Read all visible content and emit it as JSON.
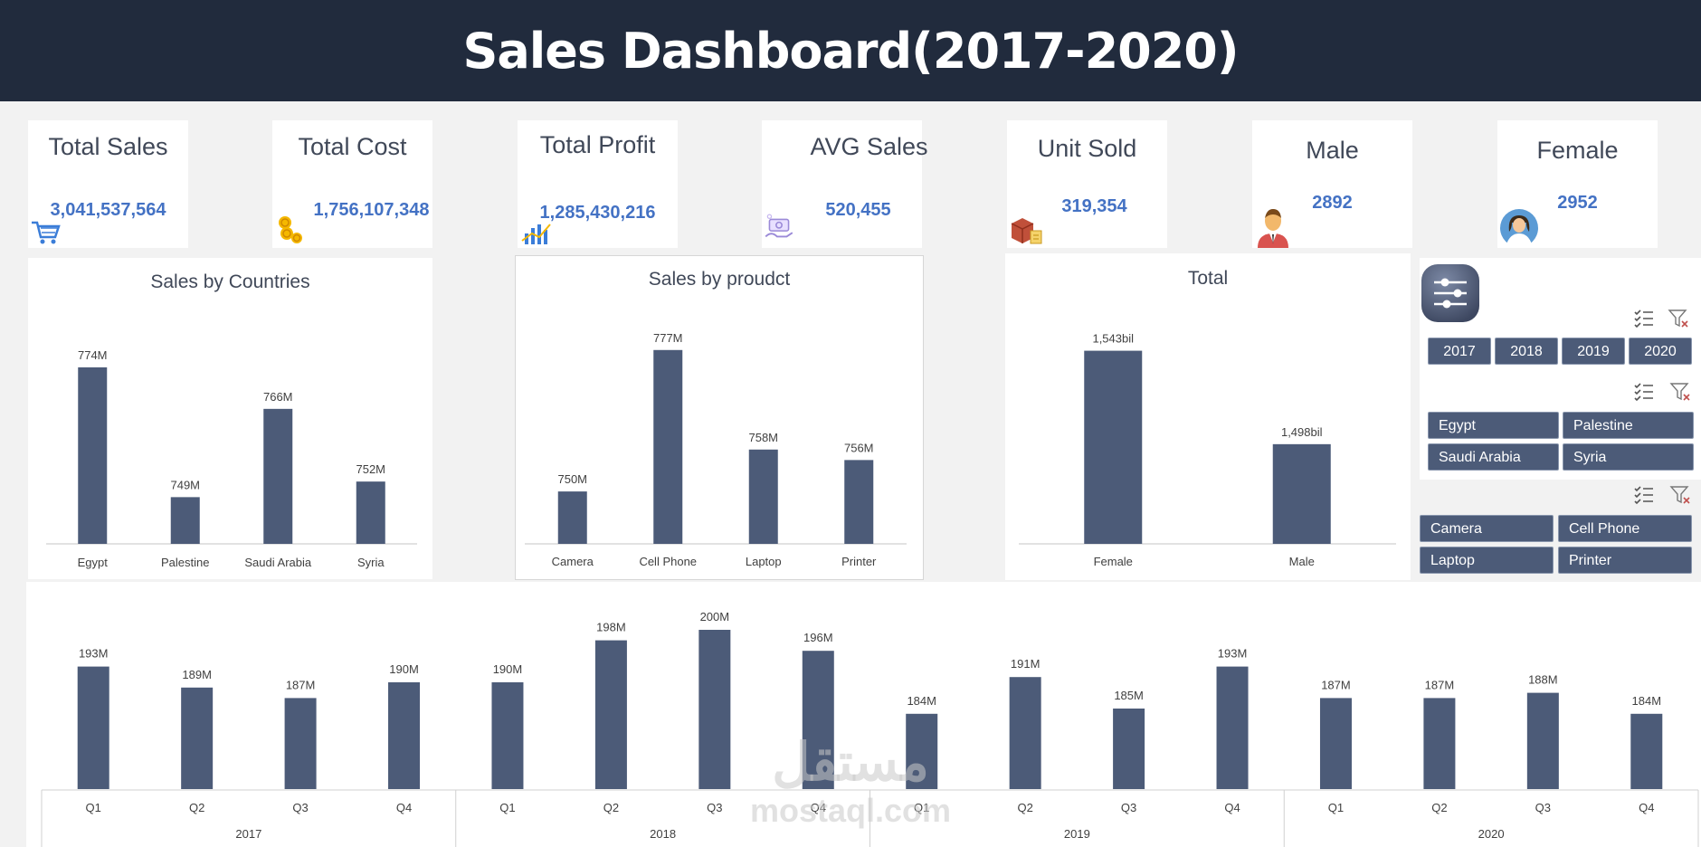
{
  "title": "Sales Dashboard(2017-2020)",
  "kpis": [
    {
      "label": "Total Sales",
      "value": "3,041,537,564",
      "icon": "shopping-cart-icon"
    },
    {
      "label": "Total Cost",
      "value": "1,756,107,348",
      "icon": "coins-icon"
    },
    {
      "label": "Total Profit",
      "value": "1,285,430,216",
      "icon": "growth-chart-icon"
    },
    {
      "label": "AVG Sales",
      "value": "520,455",
      "icon": "money-hand-icon"
    },
    {
      "label": "Unit Sold",
      "value": "319,354",
      "icon": "boxes-icon"
    },
    {
      "label": "Male",
      "value": "2892",
      "icon": "male-avatar-icon"
    },
    {
      "label": "Female",
      "value": "2952",
      "icon": "female-avatar-icon"
    }
  ],
  "colors": {
    "bar": "#4c5b78",
    "banner": "#212b3d",
    "kpi_value": "#4472c4"
  },
  "chart_data": [
    {
      "type": "bar",
      "title": "Sales by Countries",
      "categories": [
        "Egypt",
        "Palestine",
        "Saudi Arabia",
        "Syria"
      ],
      "values": [
        774,
        749,
        766,
        752
      ],
      "labels": [
        "774M",
        "749M",
        "766M",
        "752M"
      ],
      "ylim": [
        740,
        778
      ]
    },
    {
      "type": "bar",
      "title": "Sales by proudct",
      "categories": [
        "Camera",
        "Cell Phone",
        "Laptop",
        "Printer"
      ],
      "values": [
        750,
        777,
        758,
        756
      ],
      "labels": [
        "750M",
        "777M",
        "758M",
        "756M"
      ],
      "ylim": [
        740,
        778
      ]
    },
    {
      "type": "bar",
      "title": "Total",
      "categories": [
        "Female",
        "Male"
      ],
      "values": [
        1.543,
        1.498
      ],
      "labels": [
        "1,543bil",
        "1,498bil"
      ],
      "ylim": [
        1.45,
        1.545
      ]
    },
    {
      "type": "bar",
      "title": "",
      "categories": [
        "Q1",
        "Q2",
        "Q3",
        "Q4",
        "Q1",
        "Q2",
        "Q3",
        "Q4",
        "Q1",
        "Q2",
        "Q3",
        "Q4",
        "Q1",
        "Q2",
        "Q3",
        "Q4"
      ],
      "groups": [
        "2017",
        "2018",
        "2019",
        "2020"
      ],
      "values": [
        193,
        189,
        187,
        190,
        190,
        198,
        200,
        196,
        184,
        191,
        185,
        193,
        187,
        187,
        188,
        184
      ],
      "labels": [
        "193M",
        "189M",
        "187M",
        "190M",
        "190M",
        "198M",
        "200M",
        "196M",
        "184M",
        "191M",
        "185M",
        "193M",
        "187M",
        "187M",
        "188M",
        "184M"
      ],
      "ylim": [
        180,
        200
      ]
    }
  ],
  "slicers": {
    "years": [
      "2017",
      "2018",
      "2019",
      "2020"
    ],
    "countries": [
      "Egypt",
      "Palestine",
      "Saudi Arabia",
      "Syria"
    ],
    "products": [
      "Camera",
      "Cell Phone",
      "Laptop",
      "Printer"
    ]
  },
  "watermark": {
    "arabic": "مستقل",
    "latin": "mostaql.com"
  }
}
